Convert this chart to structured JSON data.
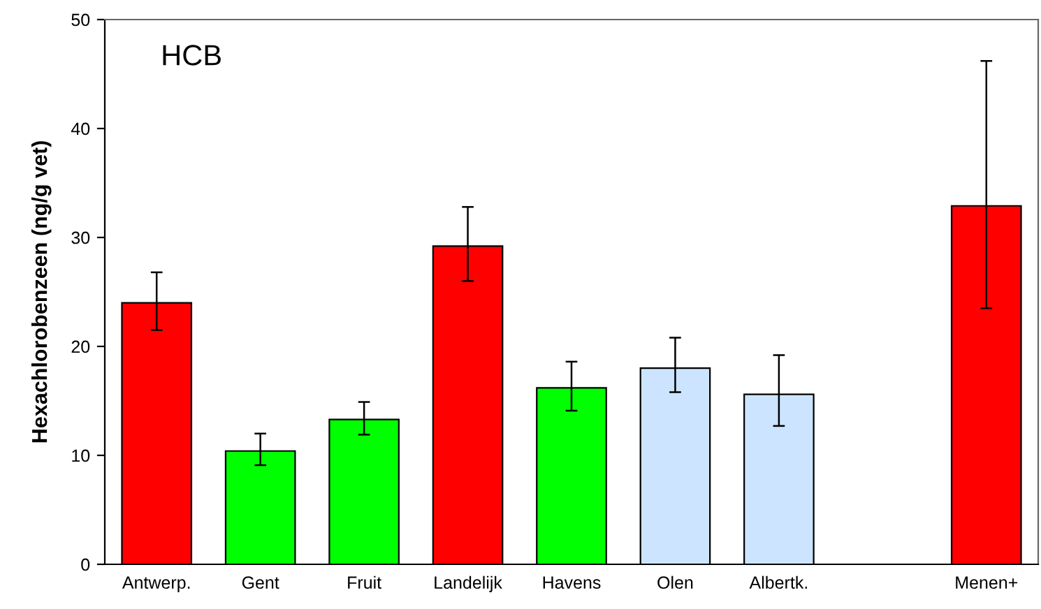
{
  "chart_data": {
    "type": "bar",
    "title": "HCB",
    "ylabel": "Hexachlorobenzeen (ng/g vet)",
    "categories": [
      "Antwerp.",
      "Gent",
      "Fruit",
      "Landelijk",
      "Havens",
      "Olen",
      "Albertk.",
      null,
      "Menen+"
    ],
    "values": [
      24.0,
      10.4,
      13.3,
      29.2,
      16.2,
      18.0,
      15.6,
      null,
      32.9
    ],
    "errors": [
      [
        21.5,
        26.8
      ],
      [
        9.1,
        12.0
      ],
      [
        11.9,
        14.9
      ],
      [
        26.0,
        32.8
      ],
      [
        14.1,
        18.6
      ],
      [
        15.8,
        20.8
      ],
      [
        12.7,
        19.2
      ],
      null,
      [
        23.5,
        46.2
      ]
    ],
    "colors": [
      "#ff0000",
      "#00ff00",
      "#00ff00",
      "#ff0000",
      "#00ff00",
      "#cce4ff",
      "#cce4ff",
      null,
      "#ff0000"
    ],
    "ylim": [
      0,
      50
    ],
    "yticks": [
      0,
      10,
      20,
      30,
      40,
      50
    ],
    "grid": false,
    "legend": false
  }
}
